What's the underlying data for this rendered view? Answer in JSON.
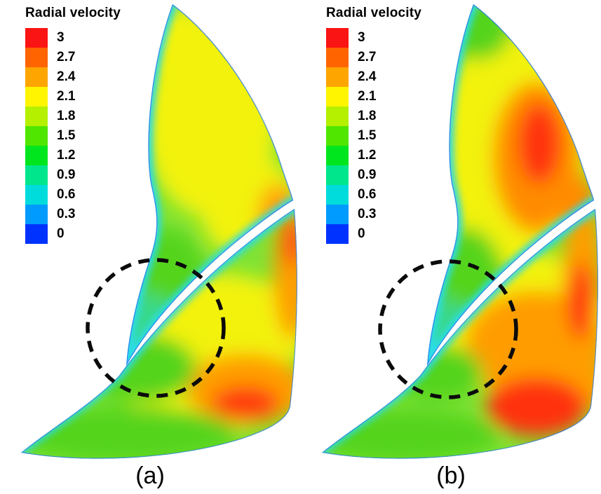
{
  "figure": {
    "background_color": "#ffffff",
    "panels": [
      {
        "label": "(a)"
      },
      {
        "label": "(b)"
      }
    ]
  },
  "chart_data": [
    {
      "type": "heatmap",
      "panel_label": "(a)",
      "title": "Radial velocity",
      "colorbar": {
        "title": "Radial velocity",
        "levels": [
          3,
          2.7,
          2.4,
          2.1,
          1.8,
          1.5,
          1.2,
          0.9,
          0.6,
          0.3,
          0
        ],
        "colors": [
          "#fa1414",
          "#ff6400",
          "#ffa500",
          "#fff500",
          "#b4f000",
          "#50e600",
          "#00e61e",
          "#00e68c",
          "#00dcdc",
          "#009bff",
          "#0032ff"
        ],
        "range": [
          0,
          3
        ],
        "orientation": "vertical"
      },
      "description": "Contour map of radial velocity over two curved impeller blade passages; field mostly green/yellow (1.5-2.4) with orange patches (2.4-3) near the outlet side and thin cyan/blue layers (0-0.9) along the blade surfaces.",
      "annotations": [
        {
          "type": "dashed-circle",
          "note": "Dashed circle marking the inter-blade region of reduced radial velocity"
        }
      ]
    },
    {
      "type": "heatmap",
      "panel_label": "(b)",
      "title": "Radial velocity",
      "colorbar": {
        "title": "Radial velocity",
        "levels": [
          3,
          2.7,
          2.4,
          2.1,
          1.8,
          1.5,
          1.2,
          0.9,
          0.6,
          0.3,
          0
        ],
        "colors": [
          "#fa1414",
          "#ff6400",
          "#ffa500",
          "#fff500",
          "#b4f000",
          "#50e600",
          "#00e61e",
          "#00e68c",
          "#00dcdc",
          "#009bff",
          "#0032ff"
        ],
        "range": [
          0,
          3
        ],
        "orientation": "vertical"
      },
      "description": "Same passages with stronger high-velocity zones: large orange/red cores (2.7-3) in the upper passage and at the lower passage outlet.",
      "annotations": [
        {
          "type": "dashed-circle",
          "note": "Dashed circle marking the same inter-blade region for comparison"
        }
      ]
    }
  ]
}
